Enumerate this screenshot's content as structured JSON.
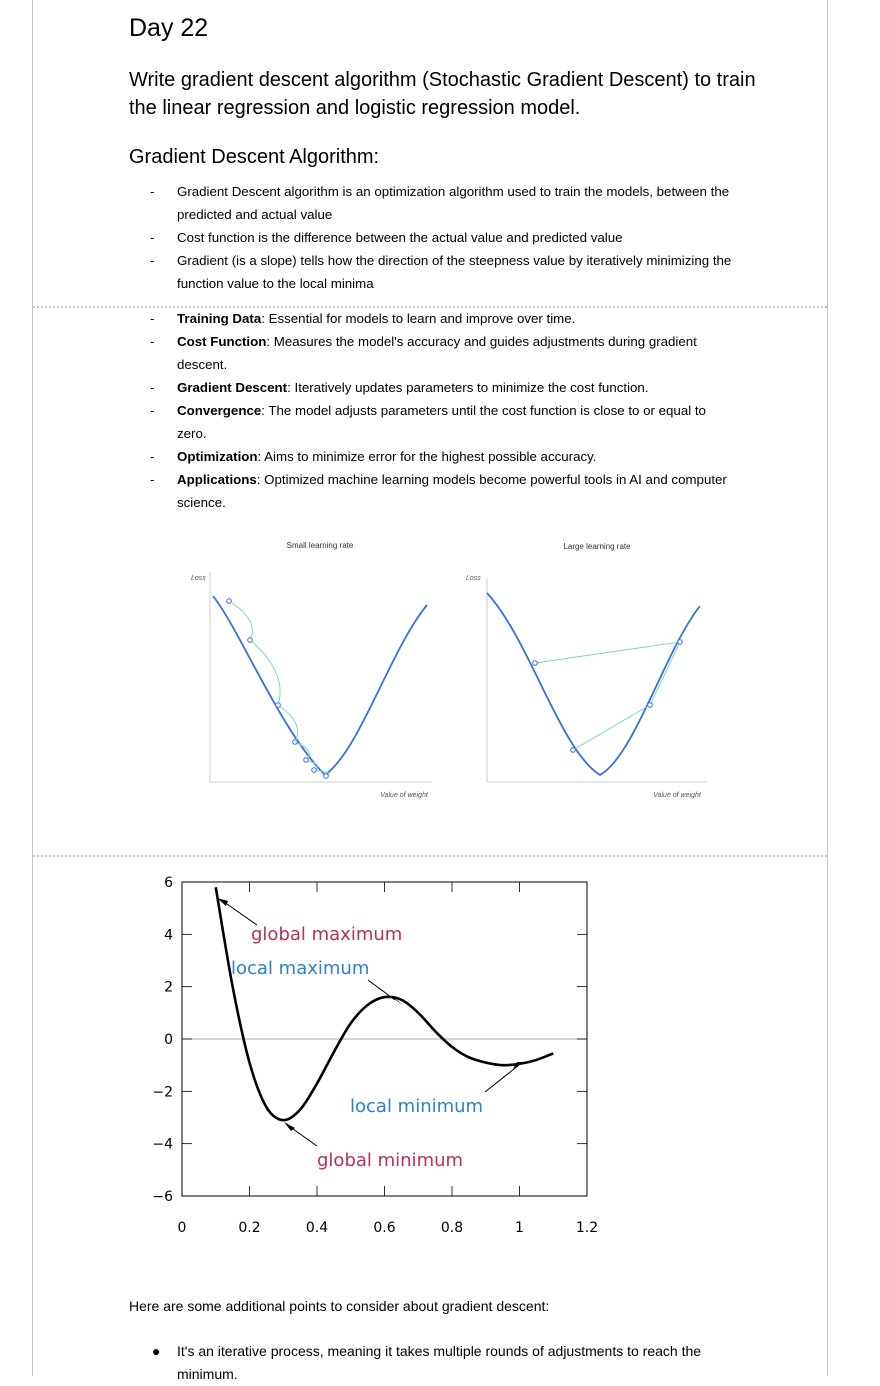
{
  "document": {
    "title": "Day 22",
    "subtitle": "Write gradient descent algorithm (Stochastic Gradient Descent) to train the linear regression and logistic regression model.",
    "section_heading": "Gradient Descent Algorithm:",
    "bullets_top": [
      {
        "text": "Gradient Descent algorithm is an optimization algorithm used to train the models, between the predicted and actual value"
      },
      {
        "text": "Cost function is the difference between the actual value and predicted value"
      },
      {
        "text": "Gradient (is a slope) tells how the direction of the steepness value by iteratively minimizing the function value to the local minima"
      }
    ],
    "bullets_key": [
      {
        "term": "Training Data",
        "text": ": Essential for models to learn and improve over time."
      },
      {
        "term": "Cost Function",
        "text": ": Measures the model's accuracy and guides adjustments during gradient descent."
      },
      {
        "term": "Gradient Descent",
        "text": ": Iteratively updates parameters to minimize the cost function."
      },
      {
        "term": "Convergence",
        "text": ": The model adjusts parameters until the cost function is close to or equal to zero."
      },
      {
        "term": "Optimization",
        "text": ": Aims to minimize error for the highest possible accuracy."
      },
      {
        "term": "Applications",
        "text": ": Optimized machine learning models become powerful tools in AI and computer science."
      }
    ],
    "bullet_marker": "-",
    "closing_text": "Here are some additional points to consider about gradient descent:",
    "final_bullets": [
      {
        "text": "It's an iterative process, meaning it takes multiple rounds of adjustments to reach the minimum."
      }
    ],
    "final_marker": "●"
  },
  "chart_data": [
    {
      "type": "line",
      "panels": [
        {
          "title": "Small learning rate",
          "ylabel": "Loss",
          "xlabel": "Value of weight"
        },
        {
          "title": "Large learning rate",
          "ylabel": "Loss",
          "xlabel": "Value of weight"
        }
      ],
      "colors": {
        "curve": "#3b6fe0",
        "steps": "#7fd3c8",
        "axis": "#cccccc"
      }
    },
    {
      "type": "line",
      "x_ticks": [
        "0",
        "0.2",
        "0.4",
        "0.6",
        "0.8",
        "1",
        "1.2"
      ],
      "y_ticks": [
        "6",
        "4",
        "2",
        "0",
        "−2",
        "−4",
        "−6"
      ],
      "xlim": [
        0,
        1.2
      ],
      "ylim": [
        -6,
        6
      ],
      "series": [
        {
          "x": [
            0.1,
            0.15,
            0.2,
            0.25,
            0.3,
            0.35,
            0.4,
            0.45,
            0.5,
            0.55,
            0.6,
            0.65,
            0.7,
            0.75,
            0.8,
            0.85,
            0.9,
            0.95,
            1.0,
            1.05,
            1.1
          ],
          "y": [
            5.8,
            2.0,
            -0.9,
            -2.6,
            -3.1,
            -2.7,
            -1.7,
            -0.5,
            0.6,
            1.3,
            1.6,
            1.5,
            1.0,
            0.3,
            -0.3,
            -0.7,
            -0.9,
            -1.0,
            -0.95,
            -0.8,
            -0.55
          ]
        }
      ],
      "annotations": [
        {
          "text": "global maximum",
          "color": "#b5305b",
          "x": 0.1,
          "y": 5.8
        },
        {
          "text": "local maximum",
          "color": "#2e7fd0",
          "x": 0.65,
          "y": 1.6
        },
        {
          "text": "local minimum",
          "color": "#2e7fd0",
          "x": 1.0,
          "y": -1.0
        },
        {
          "text": "global minimum",
          "color": "#b5305b",
          "x": 0.3,
          "y": -3.1
        }
      ]
    }
  ]
}
